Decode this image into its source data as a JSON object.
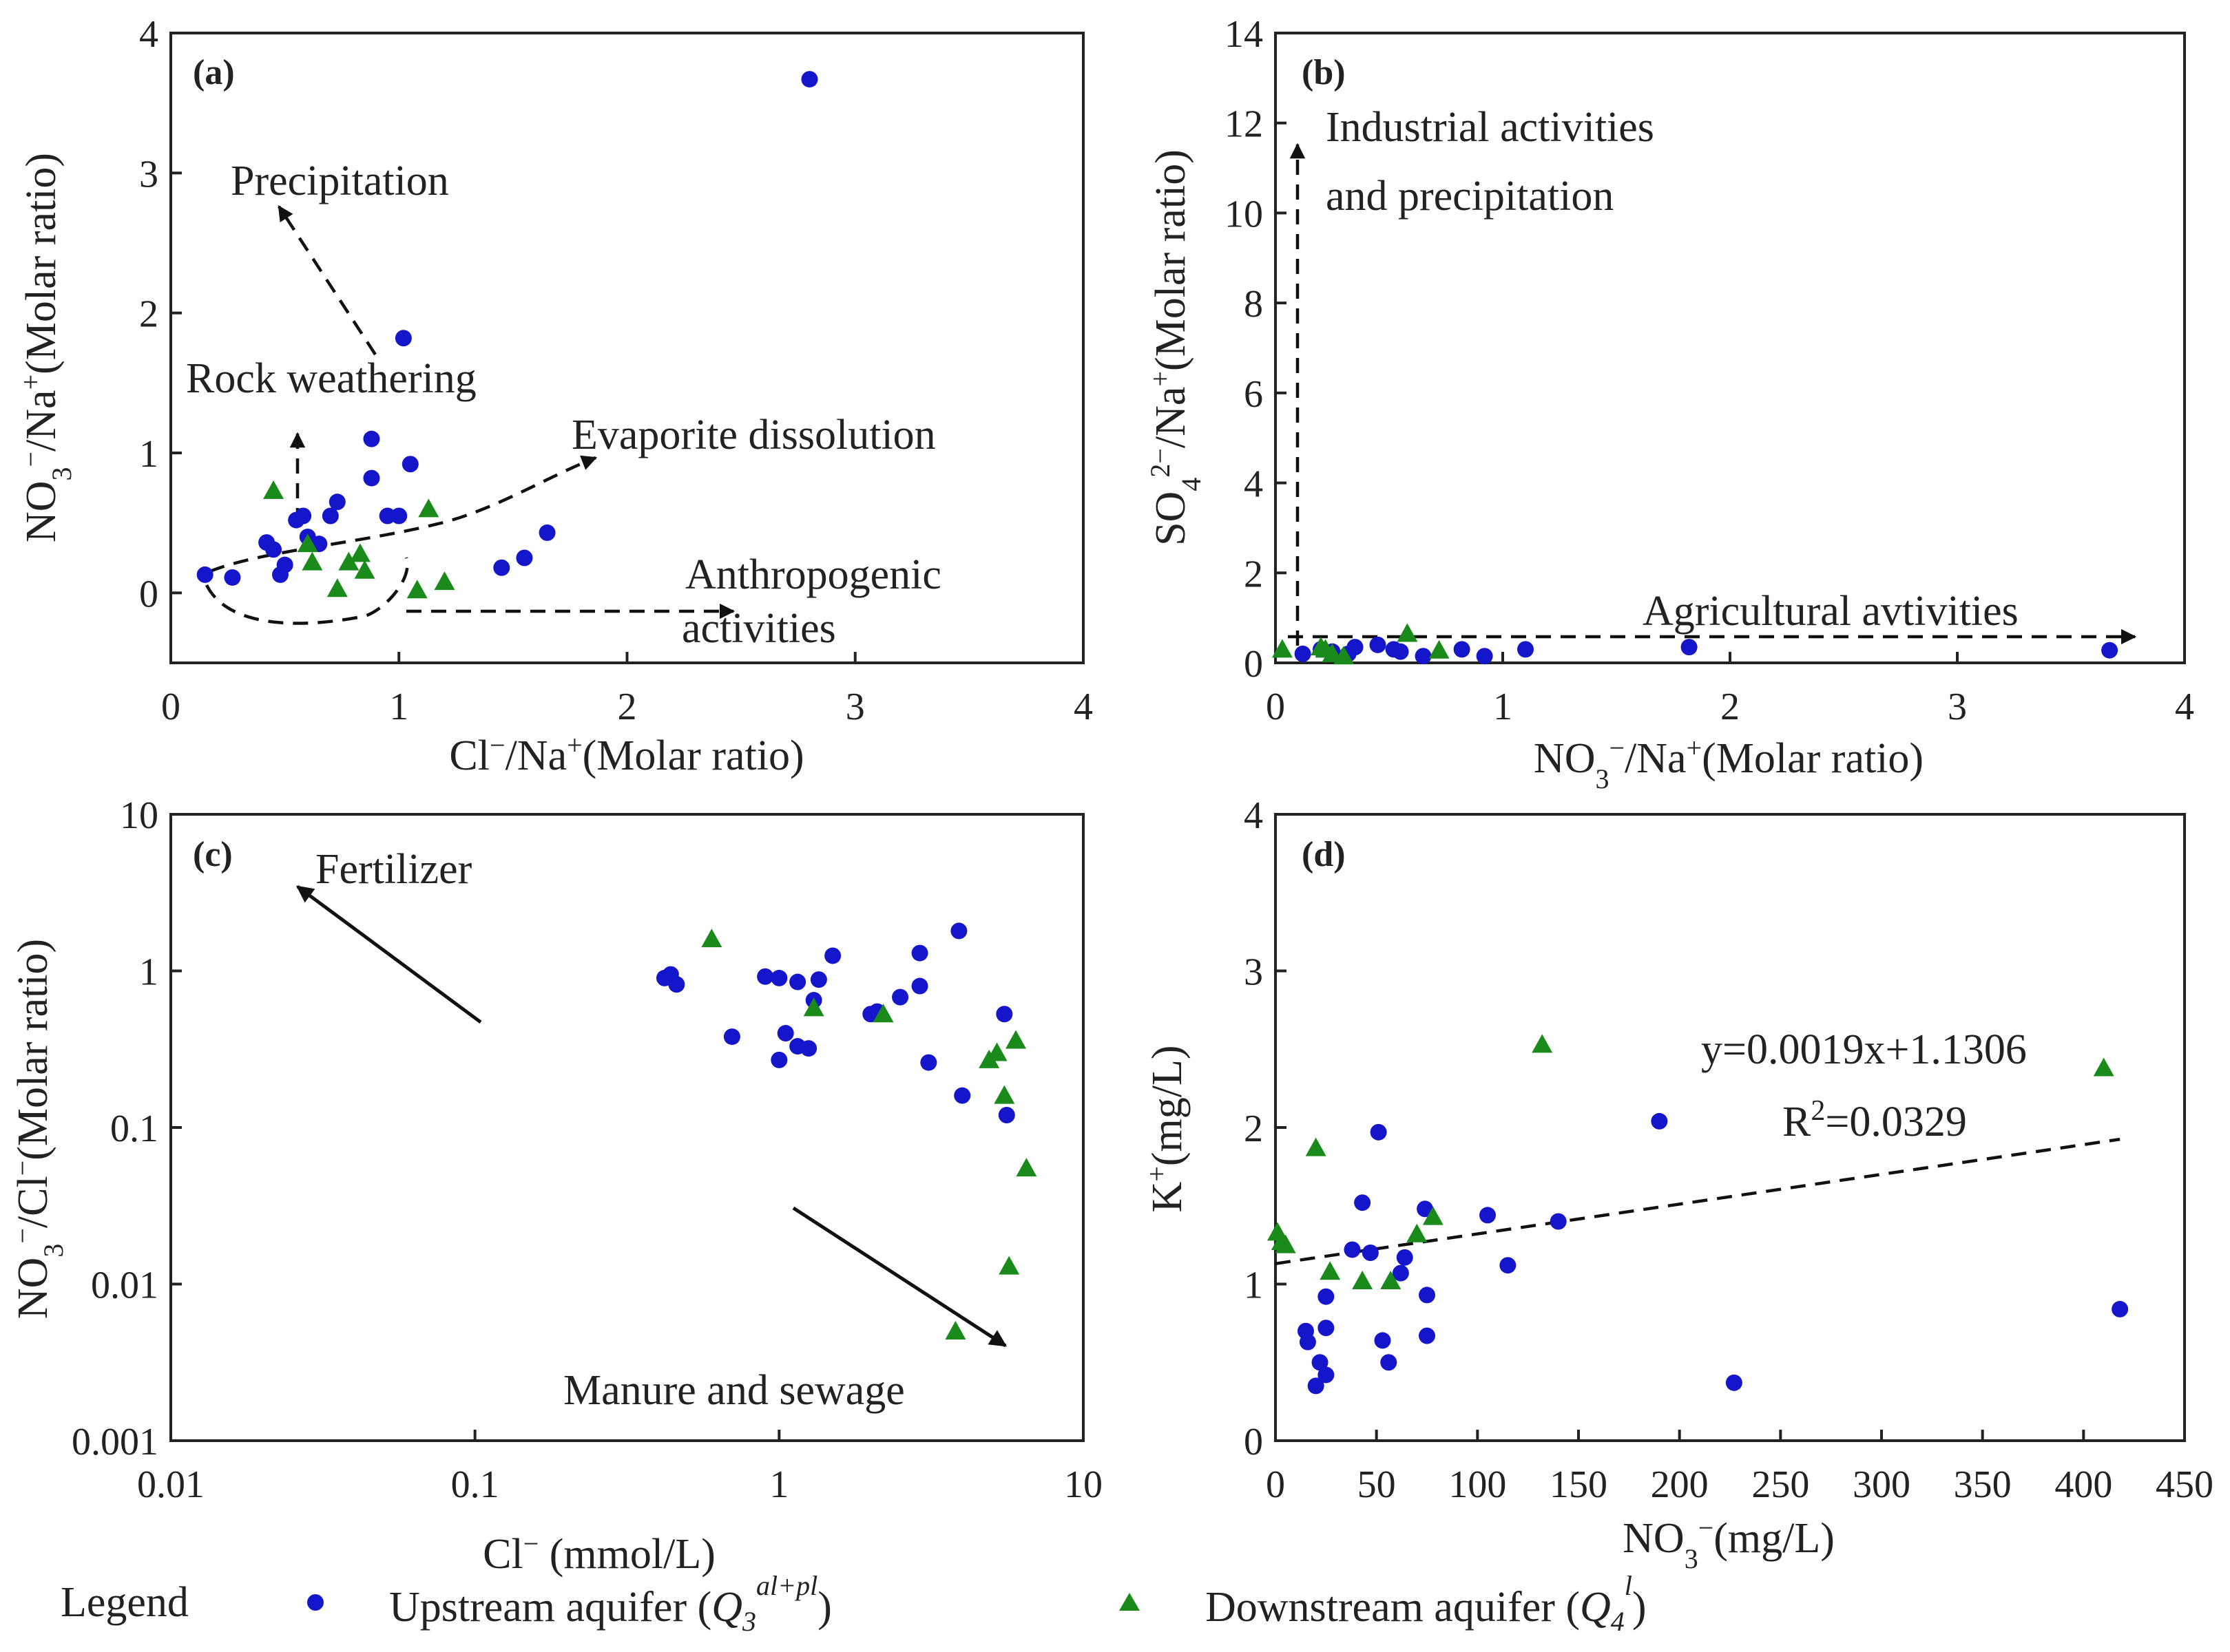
{
  "colors": {
    "upstream": "#1515cc",
    "downstream": "#1a8a1a",
    "axis": "#222222"
  },
  "legend": {
    "title": "Legend",
    "upstream_label": "Upstream aquifer (",
    "upstream_symbol": "Q",
    "upstream_sub": "3",
    "upstream_sup": "al+pl",
    "downstream_label": "Downstream aquifer (",
    "downstream_symbol": "Q",
    "downstream_sub": "4",
    "downstream_sup": "l",
    "close_paren": ")"
  },
  "chart_data": [
    {
      "id": "a",
      "type": "scatter",
      "panel_label": "(a)",
      "xlabel": "Cl⁻/Na⁺(Molar ratio)",
      "ylabel": "NO₃⁻/Na⁺(Molar ratio)",
      "xlim": [
        0,
        4
      ],
      "ylim": [
        -0.5,
        4
      ],
      "xticks": [
        0,
        1,
        2,
        3,
        4
      ],
      "yticks": [
        0,
        1,
        2,
        3,
        4
      ],
      "annotations": [
        "Precipitation",
        "Rock weathering",
        "Evaporite dissolution",
        "Anthropogenic",
        "activities"
      ],
      "series": [
        {
          "name": "Upstream aquifer",
          "marker": "circle",
          "points": [
            [
              0.15,
              0.13
            ],
            [
              0.27,
              0.11
            ],
            [
              0.42,
              0.36
            ],
            [
              0.45,
              0.31
            ],
            [
              0.48,
              0.13
            ],
            [
              0.5,
              0.2
            ],
            [
              0.55,
              0.52
            ],
            [
              0.58,
              0.55
            ],
            [
              0.6,
              0.4
            ],
            [
              0.65,
              0.35
            ],
            [
              0.7,
              0.55
            ],
            [
              0.73,
              0.65
            ],
            [
              0.88,
              1.1
            ],
            [
              0.88,
              0.82
            ],
            [
              0.95,
              0.55
            ],
            [
              1.0,
              0.55
            ],
            [
              1.02,
              1.82
            ],
            [
              1.05,
              0.92
            ],
            [
              1.45,
              0.18
            ],
            [
              1.55,
              0.25
            ],
            [
              1.65,
              0.43
            ],
            [
              2.8,
              3.67
            ]
          ]
        },
        {
          "name": "Downstream aquifer",
          "marker": "triangle",
          "points": [
            [
              0.45,
              0.73
            ],
            [
              0.6,
              0.35
            ],
            [
              0.62,
              0.22
            ],
            [
              0.73,
              0.03
            ],
            [
              0.78,
              0.22
            ],
            [
              0.83,
              0.28
            ],
            [
              0.85,
              0.16
            ],
            [
              1.08,
              0.02
            ],
            [
              1.13,
              0.6
            ],
            [
              1.2,
              0.08
            ]
          ]
        }
      ]
    },
    {
      "id": "b",
      "type": "scatter",
      "panel_label": "(b)",
      "xlabel": "NO₃⁻/Na⁺(Molar ratio)",
      "ylabel": "SO₄²⁻/Na⁺(Molar ratio)",
      "xlim": [
        0,
        4
      ],
      "ylim": [
        0,
        14
      ],
      "xticks": [
        0,
        1,
        2,
        3,
        4
      ],
      "yticks": [
        0,
        2,
        4,
        6,
        8,
        10,
        12,
        14
      ],
      "annotations": [
        "Industrial activities",
        "and precipitation",
        "Agricultural avtivities"
      ],
      "series": [
        {
          "name": "Upstream aquifer",
          "marker": "circle",
          "points": [
            [
              0.12,
              0.2
            ],
            [
              0.2,
              0.3
            ],
            [
              0.25,
              0.25
            ],
            [
              0.32,
              0.2
            ],
            [
              0.35,
              0.35
            ],
            [
              0.45,
              0.4
            ],
            [
              0.52,
              0.3
            ],
            [
              0.55,
              0.25
            ],
            [
              0.65,
              0.15
            ],
            [
              0.82,
              0.3
            ],
            [
              0.92,
              0.15
            ],
            [
              1.1,
              0.3
            ],
            [
              1.82,
              0.35
            ],
            [
              3.67,
              0.28
            ]
          ]
        },
        {
          "name": "Downstream aquifer",
          "marker": "triangle",
          "points": [
            [
              0.03,
              0.3
            ],
            [
              0.2,
              0.35
            ],
            [
              0.22,
              0.3
            ],
            [
              0.25,
              0.2
            ],
            [
              0.3,
              0.15
            ],
            [
              0.58,
              0.65
            ],
            [
              0.72,
              0.28
            ]
          ]
        }
      ]
    },
    {
      "id": "c",
      "type": "scatter",
      "panel_label": "(c)",
      "xlabel": "Cl⁻ (mmol/L)",
      "ylabel": "NO₃⁻/Cl⁻(Molar ratio)",
      "xscale": "log",
      "yscale": "log",
      "xlim": [
        0.01,
        10
      ],
      "ylim": [
        0.001,
        10
      ],
      "xticks": [
        0.01,
        0.1,
        1,
        10
      ],
      "yticks": [
        0.001,
        0.01,
        0.1,
        1,
        10
      ],
      "xtick_labels": [
        "0.01",
        "0.1",
        "1",
        "10"
      ],
      "ytick_labels": [
        "0.001",
        "0.01",
        "0.1",
        "1",
        "10"
      ],
      "annotations": [
        "Fertilizer",
        "Manure and sewage"
      ],
      "series": [
        {
          "name": "Upstream aquifer",
          "marker": "circle",
          "points": [
            [
              0.42,
              0.9
            ],
            [
              0.44,
              0.95
            ],
            [
              0.46,
              0.82
            ],
            [
              0.7,
              0.38
            ],
            [
              0.9,
              0.92
            ],
            [
              1.0,
              0.9
            ],
            [
              1.0,
              0.27
            ],
            [
              1.05,
              0.4
            ],
            [
              1.15,
              0.85
            ],
            [
              1.15,
              0.33
            ],
            [
              1.25,
              0.32
            ],
            [
              1.3,
              0.65
            ],
            [
              1.35,
              0.88
            ],
            [
              1.5,
              1.25
            ],
            [
              2.0,
              0.53
            ],
            [
              2.1,
              0.55
            ],
            [
              2.5,
              0.68
            ],
            [
              2.9,
              1.3
            ],
            [
              2.9,
              0.8
            ],
            [
              3.1,
              0.26
            ],
            [
              3.9,
              1.8
            ],
            [
              4.0,
              0.16
            ],
            [
              5.5,
              0.53
            ],
            [
              5.6,
              0.12
            ]
          ]
        },
        {
          "name": "Downstream aquifer",
          "marker": "triangle",
          "points": [
            [
              0.6,
              1.6
            ],
            [
              1.3,
              0.58
            ],
            [
              2.2,
              0.53
            ],
            [
              3.8,
              0.005
            ],
            [
              4.9,
              0.27
            ],
            [
              5.2,
              0.3
            ],
            [
              5.5,
              0.16
            ],
            [
              5.7,
              0.013
            ],
            [
              6.0,
              0.36
            ],
            [
              6.5,
              0.055
            ]
          ]
        }
      ]
    },
    {
      "id": "d",
      "type": "scatter",
      "panel_label": "(d)",
      "xlabel": "NO₃⁻(mg/L)",
      "ylabel": "K⁺(mg/L)",
      "xlim": [
        0,
        450
      ],
      "ylim": [
        0,
        4
      ],
      "xticks": [
        0,
        50,
        100,
        150,
        200,
        250,
        300,
        350,
        400,
        450
      ],
      "yticks": [
        0,
        1,
        2,
        3,
        4
      ],
      "trendline": {
        "slope": 0.0019,
        "intercept": 1.1306,
        "x_range": [
          0,
          418
        ],
        "equation": "y=0.0019x+1.1306",
        "r2_prefix": "R",
        "r2_sup": "2",
        "r2_value": "=0.0329"
      },
      "series": [
        {
          "name": "Upstream aquifer",
          "marker": "circle",
          "points": [
            [
              15,
              0.7
            ],
            [
              16,
              0.63
            ],
            [
              20,
              0.35
            ],
            [
              22,
              0.5
            ],
            [
              25,
              0.42
            ],
            [
              25,
              0.72
            ],
            [
              25,
              0.92
            ],
            [
              38,
              1.22
            ],
            [
              43,
              1.52
            ],
            [
              47,
              1.2
            ],
            [
              51,
              1.97
            ],
            [
              53,
              0.64
            ],
            [
              56,
              0.5
            ],
            [
              62,
              1.07
            ],
            [
              64,
              1.17
            ],
            [
              74,
              1.48
            ],
            [
              75,
              0.67
            ],
            [
              75,
              0.93
            ],
            [
              105,
              1.44
            ],
            [
              115,
              1.12
            ],
            [
              140,
              1.4
            ],
            [
              190,
              2.04
            ],
            [
              227,
              0.37
            ],
            [
              418,
              0.84
            ]
          ]
        },
        {
          "name": "Downstream aquifer",
          "marker": "triangle",
          "points": [
            [
              1,
              1.33
            ],
            [
              3,
              1.27
            ],
            [
              5,
              1.25
            ],
            [
              20,
              1.87
            ],
            [
              27,
              1.08
            ],
            [
              43,
              1.02
            ],
            [
              57,
              1.02
            ],
            [
              70,
              1.32
            ],
            [
              78,
              1.43
            ],
            [
              132,
              2.53
            ],
            [
              410,
              2.38
            ]
          ]
        }
      ]
    }
  ]
}
